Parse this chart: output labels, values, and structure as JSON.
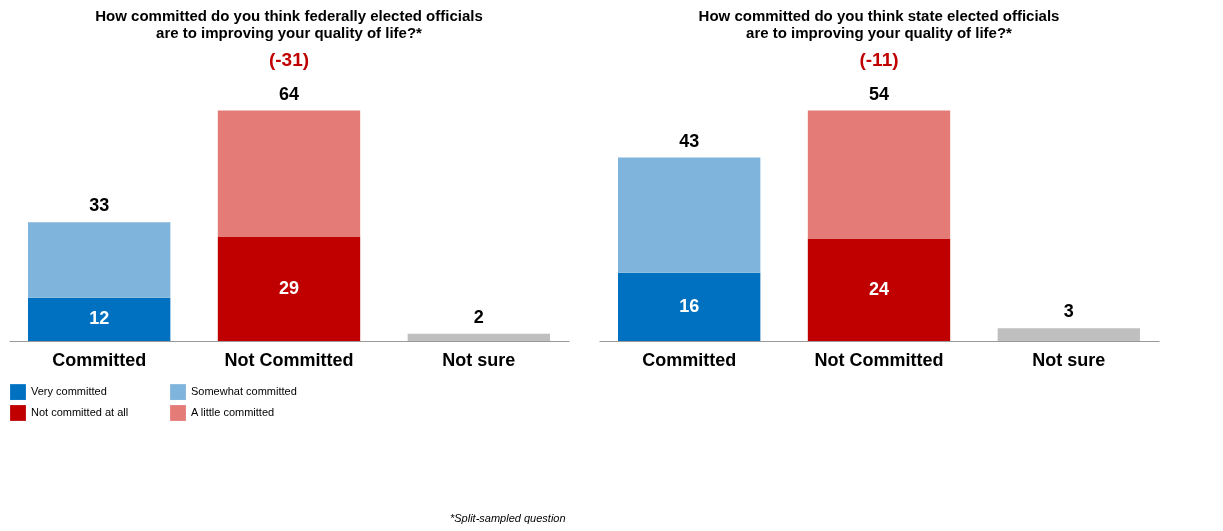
{
  "chart_data": [
    {
      "type": "bar",
      "title": "How committed do you think federally elected officials are to improving your quality of life?*",
      "subtitle": "(-31)",
      "categories": [
        "Committed",
        "Not Committed",
        "Not sure"
      ],
      "stacked": true,
      "tick_labels": "x",
      "legend": "bottom",
      "annotations": [
        "*Split-sampled question"
      ],
      "series": [
        {
          "name": "Very committed",
          "color": "#0070c0",
          "values": [
            12,
            null,
            null
          ],
          "value_labels": [
            "12",
            null,
            null
          ]
        },
        {
          "name": "Somewhat committed",
          "color": "#7fb4dc",
          "values": [
            21,
            null,
            null
          ]
        },
        {
          "name": "Not committed at all",
          "color": "#c00000",
          "values": [
            null,
            29,
            null
          ],
          "value_labels": [
            null,
            "29",
            null
          ]
        },
        {
          "name": "A little committed",
          "color": "#e57b77",
          "values": [
            null,
            35,
            null
          ]
        },
        {
          "color": "#bfbfbf",
          "values": [
            null,
            null,
            2
          ]
        }
      ],
      "totals": [
        "33",
        "64",
        "2"
      ]
    },
    {
      "type": "bar",
      "title": "How committed do you think state elected officials are to improving your quality of life?*",
      "subtitle": "(-11)",
      "categories": [
        "Committed",
        "Not Committed",
        "Not sure"
      ],
      "stacked": true,
      "tick_labels": "x",
      "legend": false,
      "series": [
        {
          "color": "#0070c0",
          "values": [
            16,
            null,
            null
          ],
          "value_labels": [
            "16",
            null,
            null
          ]
        },
        {
          "color": "#7fb4dc",
          "values": [
            27,
            null,
            null
          ]
        },
        {
          "color": "#c00000",
          "values": [
            null,
            24,
            null
          ],
          "value_labels": [
            null,
            "24",
            null
          ]
        },
        {
          "color": "#e57b77",
          "values": [
            null,
            30,
            null
          ]
        },
        {
          "color": "#bfbfbf",
          "values": [
            null,
            null,
            3
          ]
        }
      ],
      "totals": [
        "43",
        "54",
        "3"
      ]
    }
  ]
}
